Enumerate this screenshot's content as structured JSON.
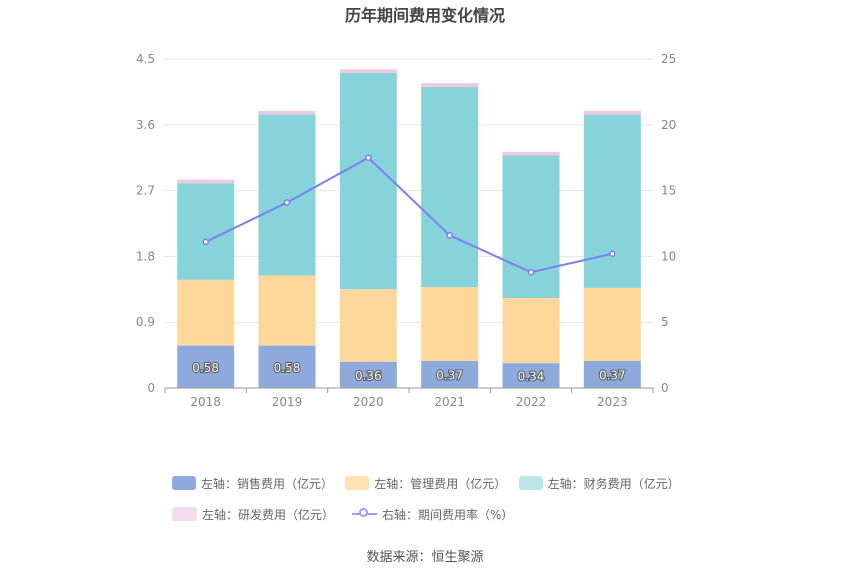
{
  "chart_data": {
    "type": "bar",
    "title": "历年期间费用变化情况",
    "categories": [
      "2018",
      "2019",
      "2020",
      "2021",
      "2022",
      "2023"
    ],
    "left_axis": {
      "ticks": [
        "0",
        "0.9",
        "1.8",
        "2.7",
        "3.6",
        "4.5"
      ],
      "ylim": [
        0,
        4.5
      ]
    },
    "right_axis": {
      "ticks": [
        "0",
        "5",
        "10",
        "15",
        "20",
        "25"
      ],
      "ylim": [
        0,
        25
      ]
    },
    "grid": true,
    "legend_position": "bottom",
    "series": [
      {
        "name": "左轴：销售费用（亿元）",
        "type": "bar",
        "axis": "left",
        "color": "#8eaadc",
        "values": [
          0.58,
          0.58,
          0.36,
          0.37,
          0.34,
          0.37
        ],
        "labels": [
          "0.58",
          "0.58",
          "0.36",
          "0.37",
          "0.34",
          "0.37"
        ]
      },
      {
        "name": "左轴：管理费用（亿元）",
        "type": "bar",
        "axis": "left",
        "color": "#fed89b",
        "values": [
          0.9,
          0.96,
          0.99,
          1.01,
          0.89,
          1.0
        ]
      },
      {
        "name": "左轴：财务费用（亿元）",
        "type": "bar",
        "axis": "left",
        "color": "#86d4d9",
        "values": [
          1.32,
          2.2,
          2.96,
          2.74,
          1.95,
          2.37
        ]
      },
      {
        "name": "左轴：研发费用（亿元）",
        "type": "bar",
        "axis": "left",
        "color": "#f0c8e3",
        "values": [
          0.05,
          0.05,
          0.05,
          0.05,
          0.05,
          0.05
        ]
      },
      {
        "name": "右轴：期间费用率（%）",
        "type": "line",
        "axis": "right",
        "color": "#7b7ff5",
        "values": [
          11.1,
          14.1,
          17.5,
          11.6,
          8.8,
          10.2
        ]
      }
    ]
  },
  "legend": {
    "row1": [
      "左轴：销售费用（亿元）",
      "左轴：管理费用（亿元）",
      "左轴：财务费用（亿元）"
    ],
    "row2": [
      "左轴：研发费用（亿元）",
      "右轴：期间费用率（%）"
    ]
  },
  "source": "数据来源：恒生聚源"
}
